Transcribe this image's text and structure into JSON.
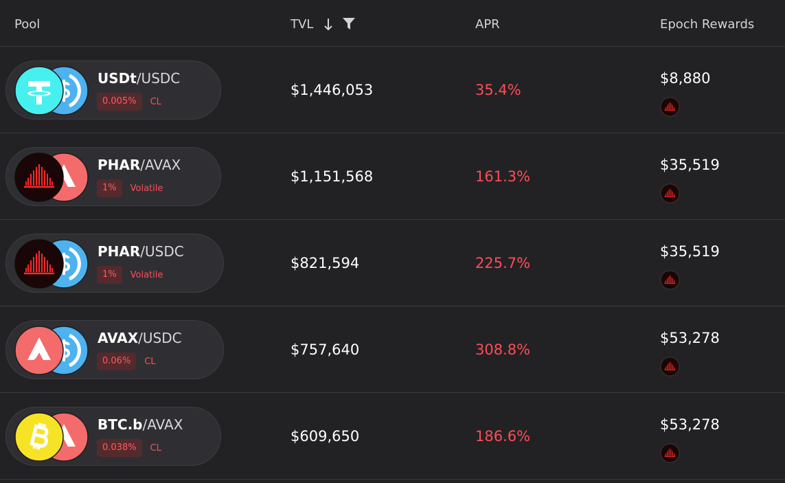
{
  "header": {
    "pool": "Pool",
    "tvl": "TVL",
    "apr": "APR",
    "rewards": "Epoch Rewards"
  },
  "rows": [
    {
      "base": "USDt",
      "quote": "/USDC",
      "fee": "0.005%",
      "kind": "CL",
      "tvl": "$1,446,053",
      "apr": "35.4%",
      "rewards": "$8,880"
    },
    {
      "base": "PHAR",
      "quote": "/AVAX",
      "fee": "1%",
      "kind": "Volatile",
      "tvl": "$1,151,568",
      "apr": "161.3%",
      "rewards": "$35,519"
    },
    {
      "base": "PHAR",
      "quote": "/USDC",
      "fee": "1%",
      "kind": "Volatile",
      "tvl": "$821,594",
      "apr": "225.7%",
      "rewards": "$35,519"
    },
    {
      "base": "AVAX",
      "quote": "/USDC",
      "fee": "0.06%",
      "kind": "CL",
      "tvl": "$757,640",
      "apr": "308.8%",
      "rewards": "$53,278"
    },
    {
      "base": "BTC.b",
      "quote": "/AVAX",
      "fee": "0.038%",
      "kind": "CL",
      "tvl": "$609,650",
      "apr": "186.6%",
      "rewards": "$53,278"
    }
  ]
}
